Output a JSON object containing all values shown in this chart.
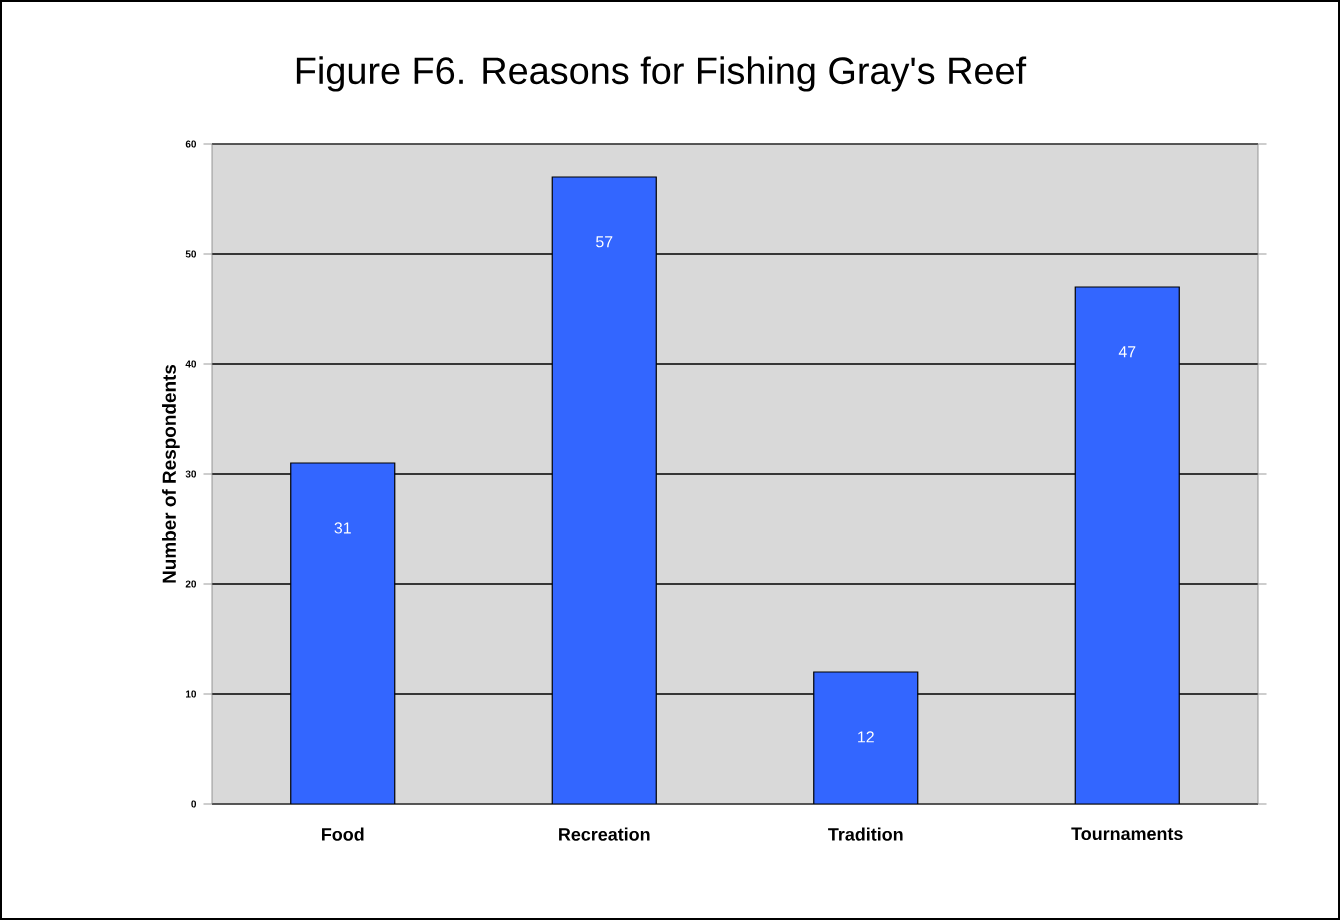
{
  "chart_data": {
    "type": "bar",
    "title": "Figure F6.  Reasons for Fishing Gray's Reef",
    "ylabel": "Number of Respondents",
    "categories": [
      "Food",
      "Recreation",
      "Tradition",
      "Tournaments"
    ],
    "values": [
      31,
      57,
      12,
      47
    ],
    "color": "#3366ff",
    "ylim": [
      0,
      60
    ],
    "yticks": [
      0,
      10,
      20,
      30,
      40,
      50,
      60
    ],
    "grid": "y",
    "data_labels": true
  }
}
